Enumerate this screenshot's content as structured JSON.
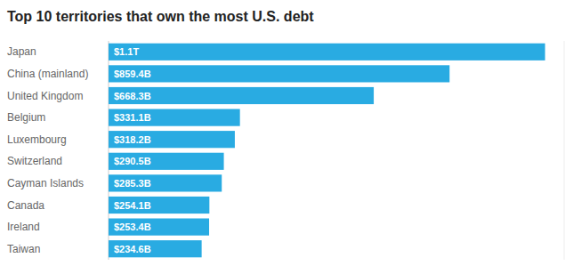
{
  "chart_data": {
    "type": "bar",
    "orientation": "horizontal",
    "title": "Top 10 territories that own the most U.S. debt",
    "categories": [
      "Japan",
      "China (mainland)",
      "United Kingdom",
      "Belgium",
      "Luxembourg",
      "Switzerland",
      "Cayman Islands",
      "Canada",
      "Ireland",
      "Taiwan"
    ],
    "values": [
      1100,
      859.4,
      668.3,
      331.1,
      318.2,
      290.5,
      285.3,
      254.1,
      253.4,
      234.6
    ],
    "value_labels": [
      "$1.1T",
      "$859.4B",
      "$668.3B",
      "$331.1B",
      "$318.2B",
      "$290.5B",
      "$285.3B",
      "$254.1B",
      "$253.4B",
      "$234.6B"
    ],
    "color": "#29ABE2",
    "xlim": [
      0,
      1148
    ],
    "data_labels": true,
    "tick_labels": "y",
    "grid": false
  }
}
